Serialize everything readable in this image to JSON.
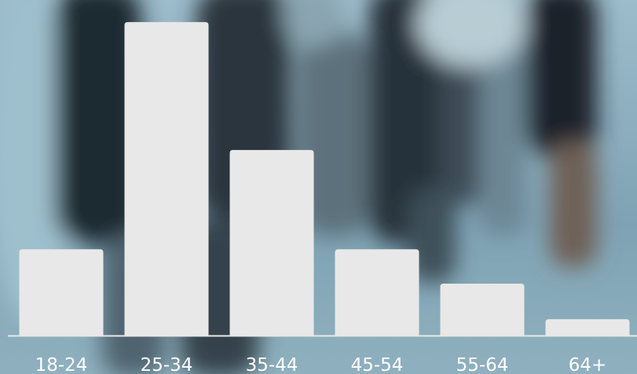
{
  "chart_data": {
    "type": "bar",
    "categories": [
      "18-24",
      "25-34",
      "35-44",
      "45-54",
      "55-64",
      "64+"
    ],
    "values": [
      23.8,
      86.5,
      51.2,
      23.8,
      14.3,
      4.5
    ],
    "ylim": [
      0,
      90
    ],
    "grid": false,
    "legend": "none"
  },
  "colors": {
    "bar": "#e8e8e8",
    "baseline": "#e8e8e8",
    "tick_label": "#ffffff",
    "background_light": "#8fb1c0",
    "background_dark": "#23323a"
  }
}
